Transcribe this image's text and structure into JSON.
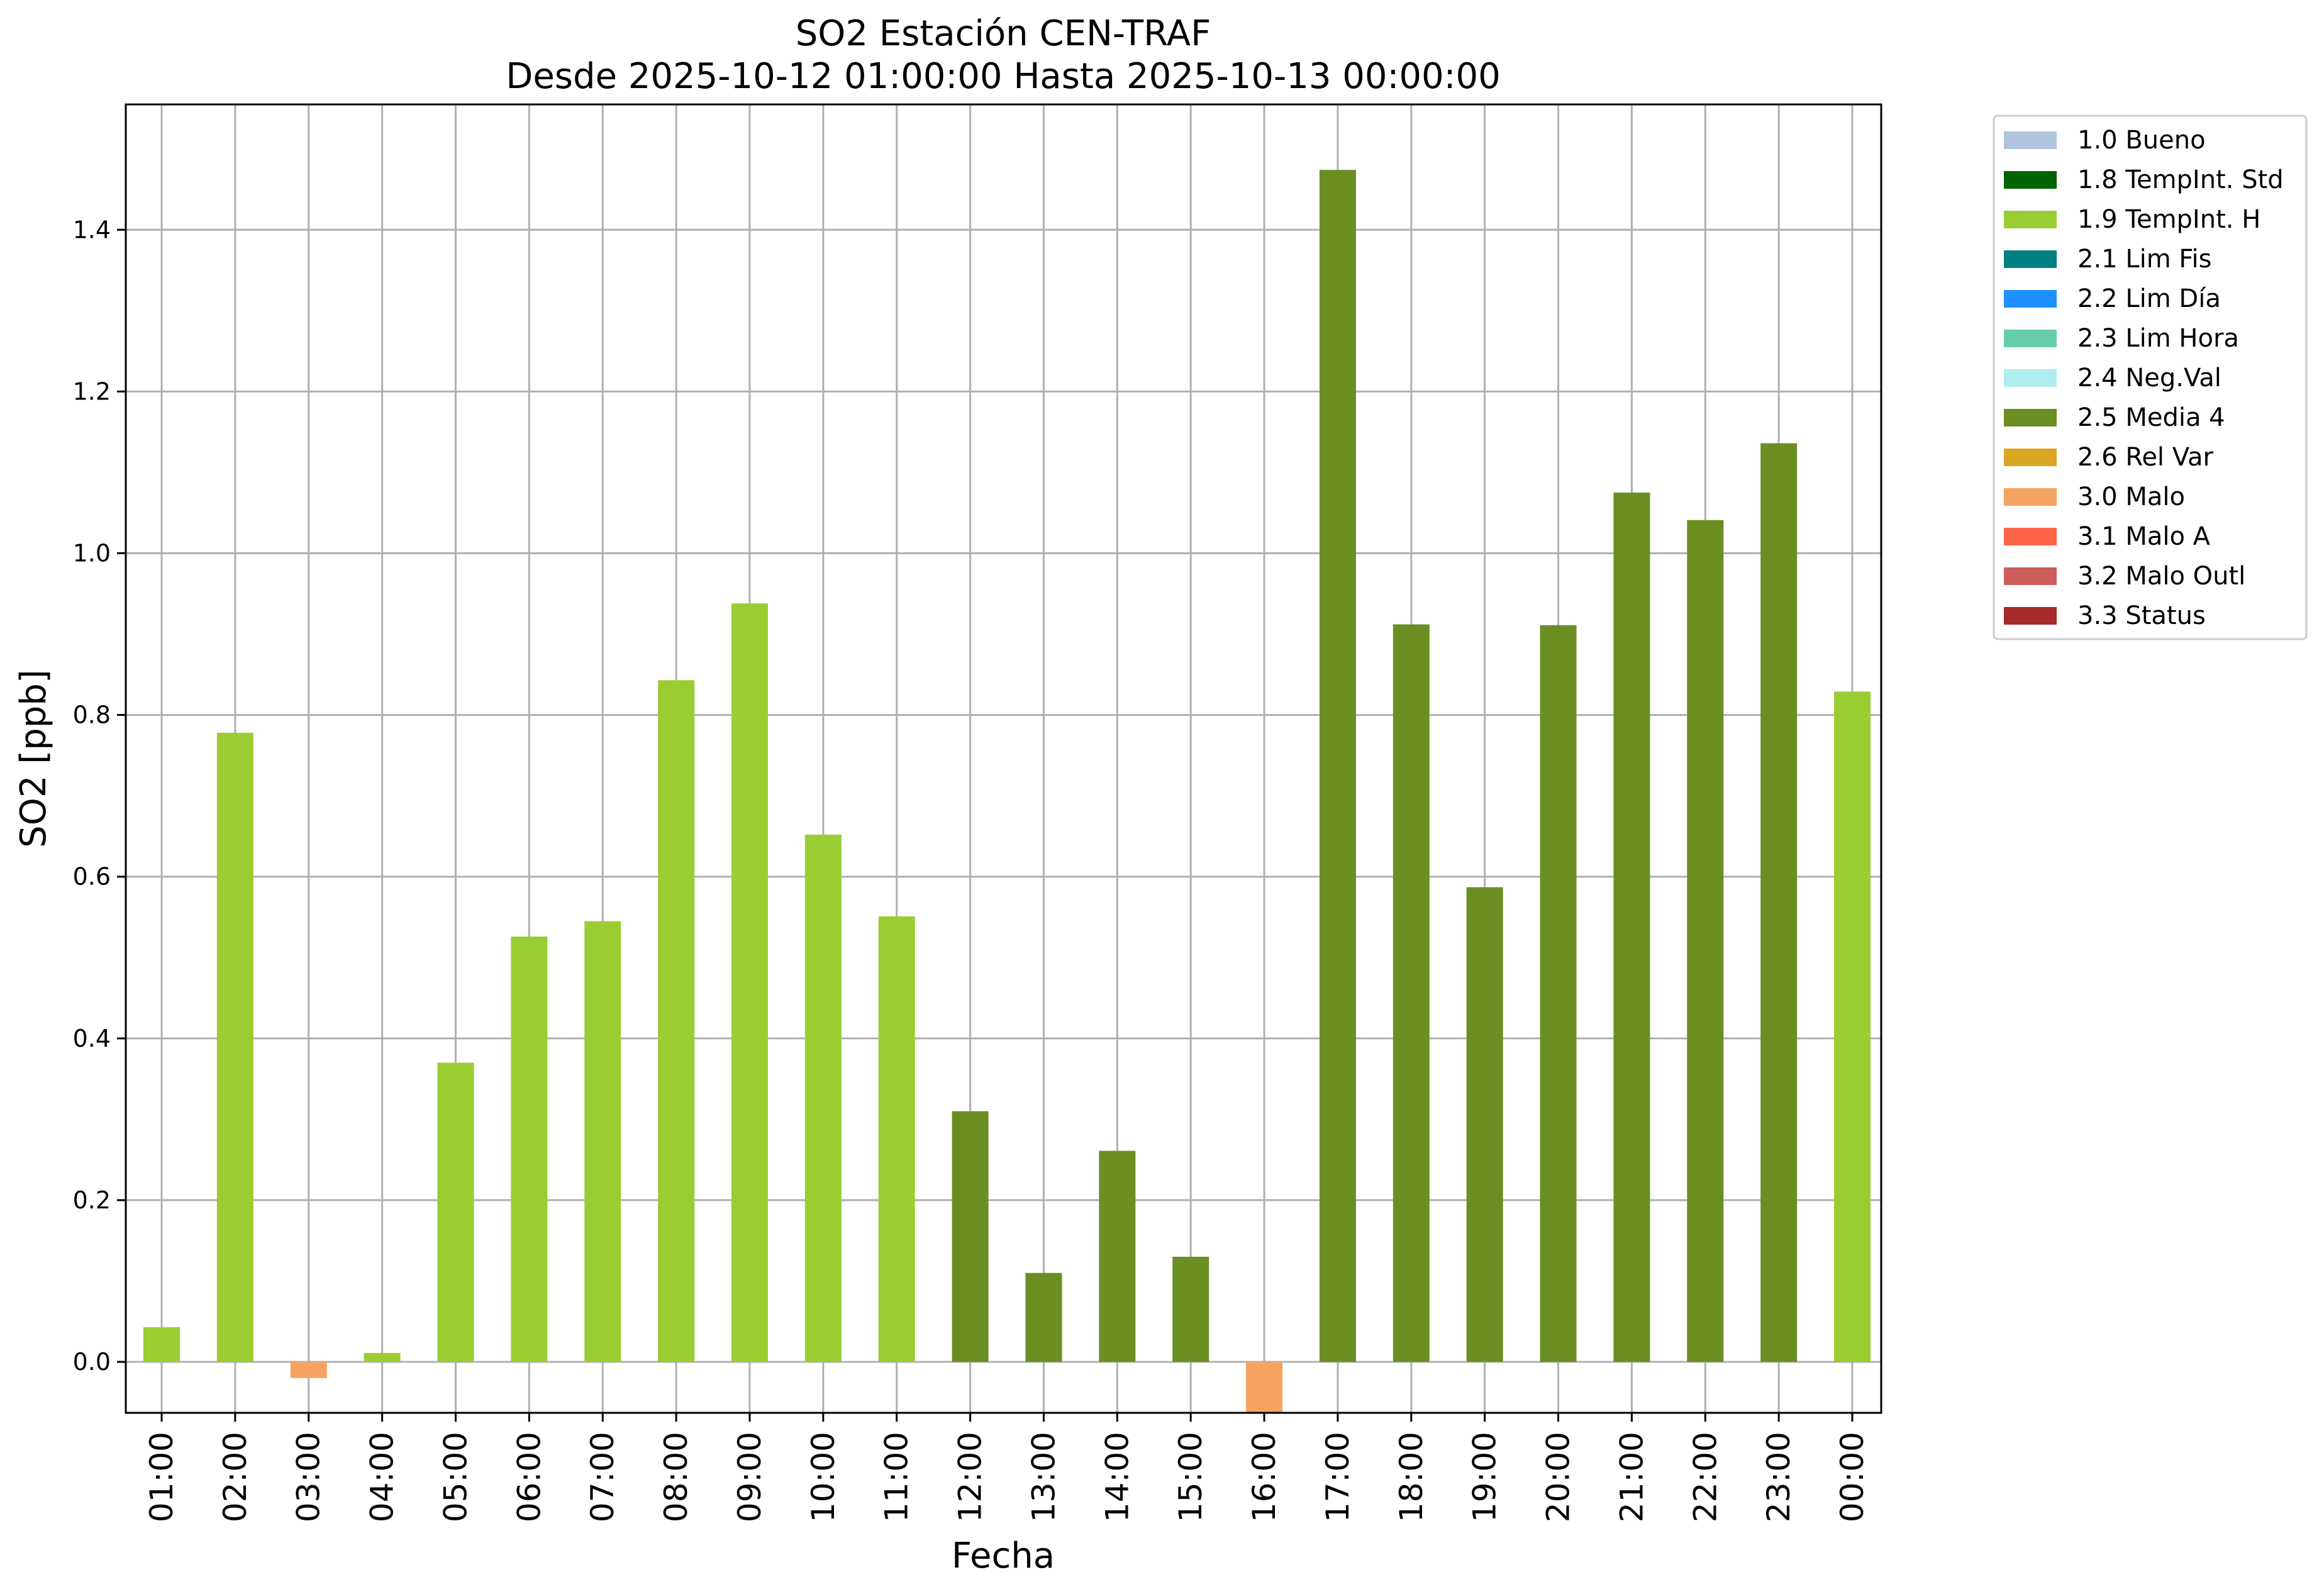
{
  "chart_data": {
    "type": "bar",
    "title": "SO2 Estación CEN-TRAF",
    "subtitle": "Desde 2025-10-12 01:00:00 Hasta 2025-10-13 00:00:00",
    "xlabel": "Fecha",
    "ylabel": "SO2 [ppb]",
    "ylim": [
      -0.063,
      1.555
    ],
    "yticks": [
      "0.0",
      "0.2",
      "0.4",
      "0.6",
      "0.8",
      "1.0",
      "1.2",
      "1.4"
    ],
    "ytick_values": [
      0.0,
      0.2,
      0.4,
      0.6,
      0.8,
      1.0,
      1.2,
      1.4
    ],
    "grid": true,
    "legend_position": "outside top-right",
    "categories": [
      "01:00",
      "02:00",
      "03:00",
      "04:00",
      "05:00",
      "06:00",
      "07:00",
      "08:00",
      "09:00",
      "10:00",
      "11:00",
      "12:00",
      "13:00",
      "14:00",
      "15:00",
      "16:00",
      "17:00",
      "18:00",
      "19:00",
      "20:00",
      "21:00",
      "22:00",
      "23:00",
      "00:00"
    ],
    "values": [
      0.043,
      0.778,
      -0.02,
      0.011,
      0.37,
      0.526,
      0.545,
      0.843,
      0.938,
      0.652,
      0.551,
      0.31,
      0.11,
      0.261,
      0.13,
      -0.063,
      1.474,
      0.912,
      0.587,
      0.911,
      1.075,
      1.041,
      1.136,
      0.829
    ],
    "flags": [
      "1.9 TempInt. H",
      "1.9 TempInt. H",
      "3.0 Malo",
      "1.9 TempInt. H",
      "1.9 TempInt. H",
      "1.9 TempInt. H",
      "1.9 TempInt. H",
      "1.9 TempInt. H",
      "1.9 TempInt. H",
      "1.9 TempInt. H",
      "1.9 TempInt. H",
      "2.5 Media 4",
      "2.5 Media 4",
      "2.5 Media 4",
      "2.5 Media 4",
      "3.0 Malo",
      "2.5 Media 4",
      "2.5 Media 4",
      "2.5 Media 4",
      "2.5 Media 4",
      "2.5 Media 4",
      "2.5 Media 4",
      "2.5 Media 4",
      "1.9 TempInt. H"
    ],
    "legend": [
      {
        "label": "1.0 Bueno",
        "color": "#b0c4de"
      },
      {
        "label": "1.8 TempInt. Std",
        "color": "#006400"
      },
      {
        "label": "1.9 TempInt. H",
        "color": "#9acd32"
      },
      {
        "label": "2.1 Lim Fis",
        "color": "#008080"
      },
      {
        "label": "2.2 Lim Día",
        "color": "#1e90ff"
      },
      {
        "label": "2.3 Lim Hora",
        "color": "#66cdaa"
      },
      {
        "label": "2.4 Neg.Val",
        "color": "#afeeee"
      },
      {
        "label": "2.5 Media 4",
        "color": "#6b8e23"
      },
      {
        "label": "2.6 Rel Var",
        "color": "#daa520"
      },
      {
        "label": "3.0 Malo",
        "color": "#f4a460"
      },
      {
        "label": "3.1 Malo A",
        "color": "#ff6347"
      },
      {
        "label": "3.2 Malo Outl",
        "color": "#cd5c5c"
      },
      {
        "label": "3.3 Status",
        "color": "#a52a2a"
      }
    ]
  }
}
